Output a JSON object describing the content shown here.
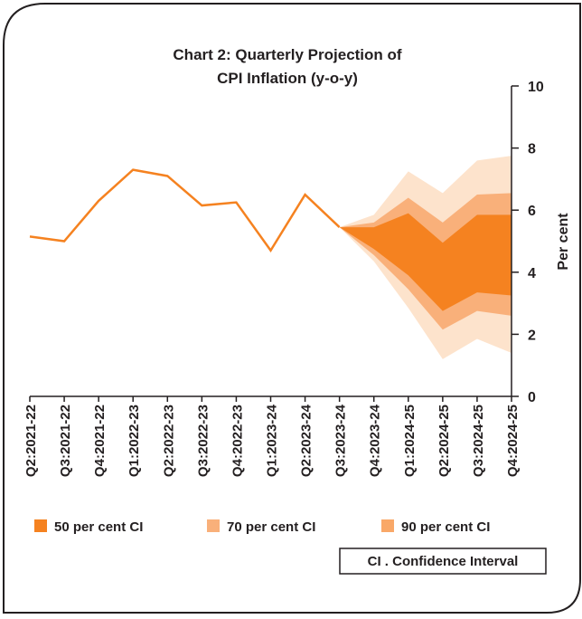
{
  "chart_data": {
    "type": "fan",
    "title": [
      "Chart 2: Quarterly Projection of",
      "CPI Inflation (y-o-y)"
    ],
    "y_label": "Per cent",
    "categories": [
      "Q2:2021-22",
      "Q3:2021-22",
      "Q4:2021-22",
      "Q1:2022-23",
      "Q2:2022-23",
      "Q3:2022-23",
      "Q4:2022-23",
      "Q1:2023-24",
      "Q2:2023-24",
      "Q3:2023-24",
      "Q4:2023-24",
      "Q1:2024-25",
      "Q2:2024-25",
      "Q3:2024-25",
      "Q4:2024-25"
    ],
    "line": {
      "color": "#f58220",
      "values": [
        5.15,
        5.0,
        6.3,
        7.3,
        7.1,
        6.15,
        6.25,
        4.7,
        6.5,
        5.45,
        null,
        null,
        null,
        null,
        null
      ]
    },
    "bands": [
      {
        "name": "90 per cent CI",
        "color": "#fde3cc",
        "lower": [
          null,
          null,
          null,
          null,
          null,
          null,
          null,
          null,
          null,
          5.45,
          4.35,
          2.85,
          1.2,
          1.85,
          1.4
        ],
        "upper": [
          null,
          null,
          null,
          null,
          null,
          null,
          null,
          null,
          null,
          5.45,
          5.85,
          7.25,
          6.55,
          7.6,
          7.75
        ]
      },
      {
        "name": "70 per cent CI",
        "color": "#f9b07a",
        "lower": [
          null,
          null,
          null,
          null,
          null,
          null,
          null,
          null,
          null,
          5.45,
          4.55,
          3.45,
          2.15,
          2.75,
          2.6
        ],
        "upper": [
          null,
          null,
          null,
          null,
          null,
          null,
          null,
          null,
          null,
          5.45,
          5.6,
          6.4,
          5.6,
          6.5,
          6.55
        ]
      },
      {
        "name": "50 per cent CI",
        "color": "#f58220",
        "lower": [
          null,
          null,
          null,
          null,
          null,
          null,
          null,
          null,
          null,
          5.45,
          4.75,
          3.9,
          2.75,
          3.35,
          3.25
        ],
        "upper": [
          null,
          null,
          null,
          null,
          null,
          null,
          null,
          null,
          null,
          5.45,
          5.45,
          5.9,
          4.95,
          5.85,
          5.85
        ]
      }
    ],
    "ylim": [
      0,
      10
    ],
    "yticks": [
      0,
      2,
      4,
      6,
      8,
      10
    ],
    "note": "CI . Confidence Interval"
  }
}
